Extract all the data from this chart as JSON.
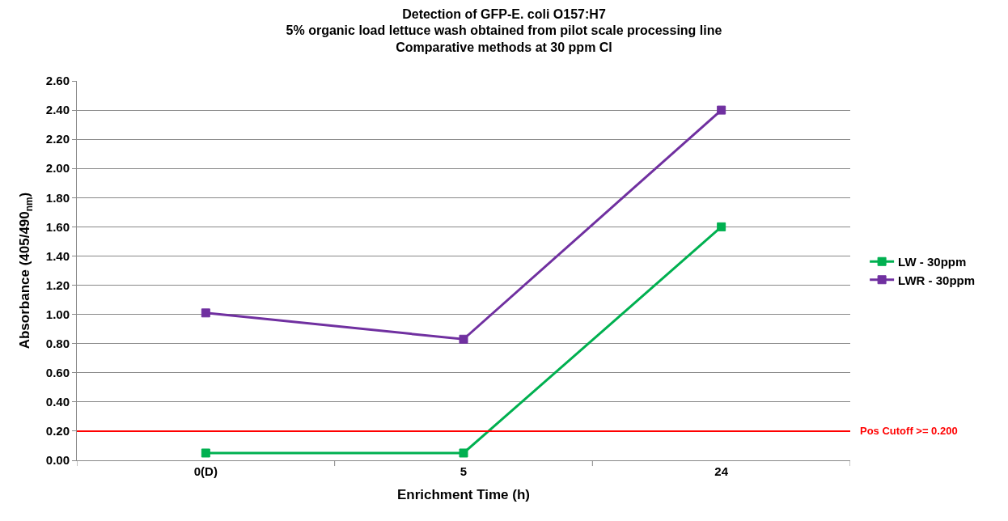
{
  "chart_data": {
    "type": "line",
    "title": "Detection of GFP-E. coli O157:H7",
    "subtitle": "5% organic load lettuce wash obtained from pilot scale processing line\nComparative methods at 30 ppm Cl",
    "xlabel": "Enrichment Time (h)",
    "ylabel": "Absorbance (405/490$_{nm}$)",
    "categories": [
      "0(D)",
      "5",
      "24"
    ],
    "series": [
      {
        "name": "LW - 30ppm",
        "color": "#00b050",
        "values": [
          0.05,
          0.05,
          1.6
        ]
      },
      {
        "name": "LWR - 30ppm",
        "color": "#7030a0",
        "values": [
          1.01,
          0.83,
          2.4
        ]
      }
    ],
    "ylim": [
      0,
      2.6
    ],
    "yticks": [
      {
        "value": 0,
        "label": "0.00"
      },
      {
        "value": 0.2,
        "label": "0.20"
      },
      {
        "value": 0.4,
        "label": "0.40"
      },
      {
        "value": 0.6,
        "label": "0.60"
      },
      {
        "value": 0.8,
        "label": "0.80"
      },
      {
        "value": 1.0,
        "label": "1.00"
      },
      {
        "value": 1.2,
        "label": "1.20"
      },
      {
        "value": 1.4,
        "label": "1.40"
      },
      {
        "value": 1.6,
        "label": "1.60"
      },
      {
        "value": 1.8,
        "label": "1.80"
      },
      {
        "value": 2.0,
        "label": "2.00"
      },
      {
        "value": 2.2,
        "label": "2.20"
      },
      {
        "value": 2.4,
        "label": "2.40"
      },
      {
        "value": 2.6,
        "label": "2.60"
      }
    ],
    "ref_lines": [
      {
        "axis": "y",
        "value": 0.2,
        "label": "Pos Cutoff >= 0.200",
        "color": "#ff0000",
        "line_style": "solid"
      }
    ],
    "grid": "y",
    "legend": "right",
    "marker": "square",
    "line_style": "solid"
  }
}
